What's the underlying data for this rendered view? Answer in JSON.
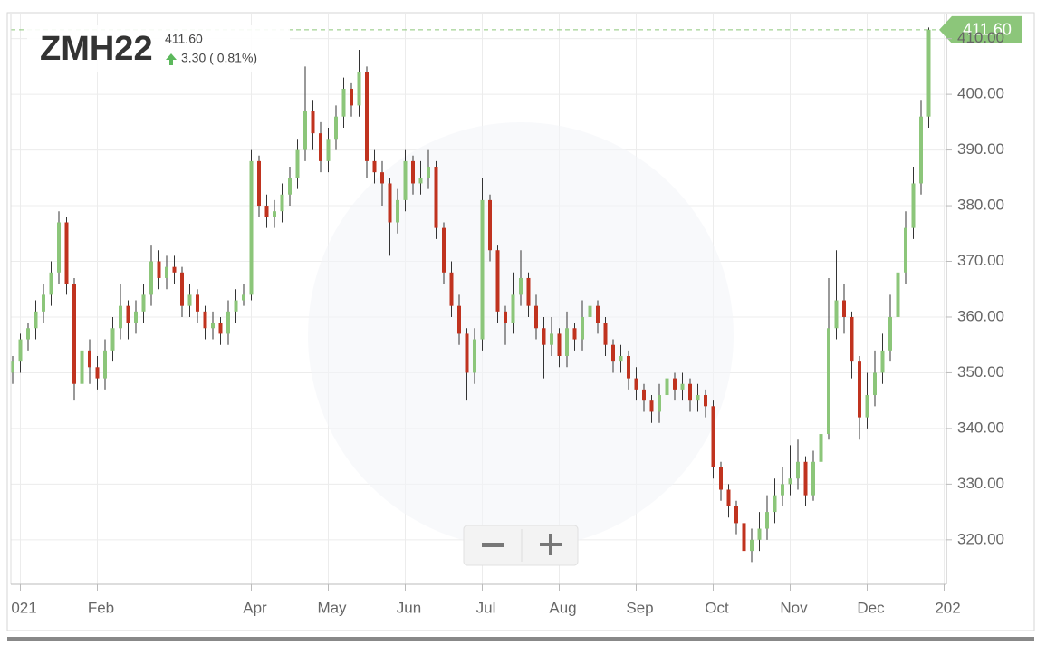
{
  "chart_data": {
    "type": "candlestick",
    "title": "ZMH22",
    "change_label": "3.30 ( 0.81%)",
    "last_value": 411.6,
    "last_value_label": "411.60",
    "up_color": "#8cc67a",
    "down_color": "#c0331f",
    "grid": true,
    "ylim": [
      312,
      414.5
    ],
    "yticks": [
      {
        "value": 320,
        "label": "320.00"
      },
      {
        "value": 330,
        "label": "330.00"
      },
      {
        "value": 340,
        "label": "340.00"
      },
      {
        "value": 350,
        "label": "350.00"
      },
      {
        "value": 360,
        "label": "360.00"
      },
      {
        "value": 370,
        "label": "370.00"
      },
      {
        "value": 380,
        "label": "380.00"
      },
      {
        "value": 390,
        "label": "390.00"
      },
      {
        "value": 400,
        "label": "400.00"
      },
      {
        "value": 410,
        "label": "410.00"
      }
    ],
    "categories": [
      null,
      "021",
      null,
      null,
      null,
      null,
      null,
      null,
      null,
      null,
      null,
      "Feb",
      null,
      null,
      null,
      null,
      null,
      null,
      null,
      null,
      null,
      null,
      null,
      null,
      null,
      null,
      null,
      null,
      null,
      null,
      null,
      "Apr",
      null,
      null,
      null,
      null,
      null,
      null,
      null,
      null,
      null,
      "May",
      null,
      null,
      null,
      null,
      null,
      null,
      null,
      null,
      null,
      "Jun",
      null,
      null,
      null,
      null,
      null,
      null,
      null,
      null,
      null,
      "Jul",
      null,
      null,
      null,
      null,
      null,
      null,
      null,
      null,
      null,
      "Aug",
      null,
      null,
      null,
      null,
      null,
      null,
      null,
      null,
      null,
      "Sep",
      null,
      null,
      null,
      null,
      null,
      null,
      null,
      null,
      null,
      "Oct",
      null,
      null,
      null,
      null,
      null,
      null,
      null,
      null,
      null,
      "Nov",
      null,
      null,
      null,
      null,
      null,
      null,
      null,
      null,
      null,
      "Dec",
      null,
      null,
      null,
      null,
      null,
      null,
      null,
      null,
      null,
      "202"
    ],
    "values": [
      [
        350,
        353,
        348,
        352
      ],
      [
        352,
        357,
        350,
        356
      ],
      [
        356,
        359,
        354,
        358
      ],
      [
        358,
        363,
        356,
        361
      ],
      [
        361,
        366,
        359,
        364
      ],
      [
        364,
        370,
        362,
        368
      ],
      [
        368,
        379,
        366,
        377
      ],
      [
        377,
        378,
        364,
        366
      ],
      [
        366,
        367,
        345,
        348
      ],
      [
        348,
        357,
        346,
        354
      ],
      [
        354,
        356,
        348,
        351
      ],
      [
        351,
        353,
        347,
        349
      ],
      [
        349,
        356,
        347,
        354
      ],
      [
        354,
        360,
        352,
        358
      ],
      [
        358,
        366,
        356,
        362
      ],
      [
        362,
        363,
        356,
        359
      ],
      [
        359,
        363,
        357,
        361
      ],
      [
        361,
        366,
        359,
        364
      ],
      [
        364,
        373,
        362,
        370
      ],
      [
        370,
        372,
        365,
        367
      ],
      [
        367,
        371,
        365,
        369
      ],
      [
        369,
        371,
        366,
        368
      ],
      [
        368,
        369,
        360,
        362
      ],
      [
        362,
        366,
        360,
        364
      ],
      [
        364,
        365,
        359,
        361
      ],
      [
        361,
        362,
        356,
        358
      ],
      [
        358,
        361,
        356,
        359
      ],
      [
        359,
        360,
        355,
        357
      ],
      [
        357,
        363,
        355,
        361
      ],
      [
        361,
        365,
        359,
        363
      ],
      [
        363,
        366,
        362,
        364
      ],
      [
        364,
        390,
        363,
        388
      ],
      [
        388,
        389,
        378,
        380
      ],
      [
        380,
        382,
        376,
        378
      ],
      [
        378,
        381,
        376,
        379
      ],
      [
        379,
        384,
        377,
        382
      ],
      [
        382,
        387,
        380,
        385
      ],
      [
        385,
        392,
        383,
        390
      ],
      [
        390,
        405,
        388,
        397
      ],
      [
        397,
        399,
        390,
        393
      ],
      [
        393,
        395,
        386,
        388
      ],
      [
        388,
        394,
        386,
        392
      ],
      [
        392,
        398,
        390,
        396
      ],
      [
        396,
        403,
        394,
        401
      ],
      [
        401,
        402,
        396,
        398
      ],
      [
        398,
        408,
        396,
        404
      ],
      [
        404,
        405,
        385,
        388
      ],
      [
        388,
        390,
        384,
        386
      ],
      [
        386,
        388,
        380,
        384
      ],
      [
        384,
        385,
        371,
        377
      ],
      [
        377,
        383,
        375,
        381
      ],
      [
        381,
        390,
        379,
        388
      ],
      [
        388,
        389,
        382,
        384
      ],
      [
        384,
        388,
        382,
        385
      ],
      [
        385,
        390,
        383,
        387
      ],
      [
        387,
        388,
        374,
        376
      ],
      [
        376,
        377,
        366,
        368
      ],
      [
        368,
        370,
        360,
        362
      ],
      [
        362,
        364,
        355,
        357
      ],
      [
        357,
        358,
        345,
        350
      ],
      [
        350,
        358,
        348,
        356
      ],
      [
        356,
        385,
        354,
        381
      ],
      [
        381,
        382,
        370,
        372
      ],
      [
        372,
        373,
        359,
        361
      ],
      [
        361,
        362,
        355,
        359
      ],
      [
        359,
        368,
        357,
        364
      ],
      [
        364,
        372,
        362,
        367
      ],
      [
        367,
        368,
        360,
        362
      ],
      [
        362,
        364,
        356,
        358
      ],
      [
        358,
        360,
        349,
        355
      ],
      [
        355,
        360,
        353,
        357
      ],
      [
        357,
        358,
        351,
        353
      ],
      [
        353,
        361,
        351,
        358
      ],
      [
        358,
        359,
        354,
        356
      ],
      [
        356,
        363,
        354,
        360
      ],
      [
        360,
        365,
        358,
        362
      ],
      [
        362,
        363,
        357,
        359
      ],
      [
        359,
        360,
        353,
        355
      ],
      [
        355,
        356,
        350,
        352
      ],
      [
        352,
        355,
        350,
        353
      ],
      [
        353,
        354,
        347,
        349
      ],
      [
        349,
        351,
        345,
        347
      ],
      [
        347,
        348,
        343,
        345
      ],
      [
        345,
        346,
        341,
        343
      ],
      [
        343,
        348,
        341,
        346
      ],
      [
        346,
        351,
        344,
        349
      ],
      [
        349,
        350,
        345,
        347
      ],
      [
        347,
        350,
        345,
        348
      ],
      [
        348,
        349,
        343,
        345
      ],
      [
        345,
        348,
        343,
        346
      ],
      [
        346,
        347,
        342,
        344
      ],
      [
        344,
        345,
        331,
        333
      ],
      [
        333,
        334,
        327,
        329
      ],
      [
        329,
        330,
        324,
        326
      ],
      [
        326,
        327,
        321,
        323
      ],
      [
        323,
        324,
        315,
        318
      ],
      [
        318,
        322,
        316,
        320
      ],
      [
        320,
        325,
        318,
        322
      ],
      [
        322,
        328,
        320,
        325
      ],
      [
        325,
        331,
        323,
        328
      ],
      [
        328,
        333,
        326,
        330
      ],
      [
        330,
        337,
        328,
        331
      ],
      [
        331,
        338,
        329,
        334
      ],
      [
        334,
        335,
        326,
        328
      ],
      [
        328,
        336,
        327,
        334
      ],
      [
        334,
        341,
        332,
        339
      ],
      [
        339,
        367,
        338,
        358
      ],
      [
        358,
        372,
        356,
        363
      ],
      [
        363,
        366,
        357,
        360
      ],
      [
        360,
        361,
        349,
        352
      ],
      [
        352,
        353,
        338,
        342
      ],
      [
        342,
        350,
        340,
        346
      ],
      [
        346,
        354,
        344,
        350
      ],
      [
        350,
        357,
        348,
        354
      ],
      [
        354,
        364,
        352,
        360
      ],
      [
        360,
        380,
        358,
        368
      ],
      [
        368,
        379,
        366,
        376
      ],
      [
        376,
        387,
        374,
        384
      ],
      [
        384,
        399,
        382,
        396
      ],
      [
        396,
        412,
        394,
        411.6
      ],
      null,
      null
    ]
  }
}
